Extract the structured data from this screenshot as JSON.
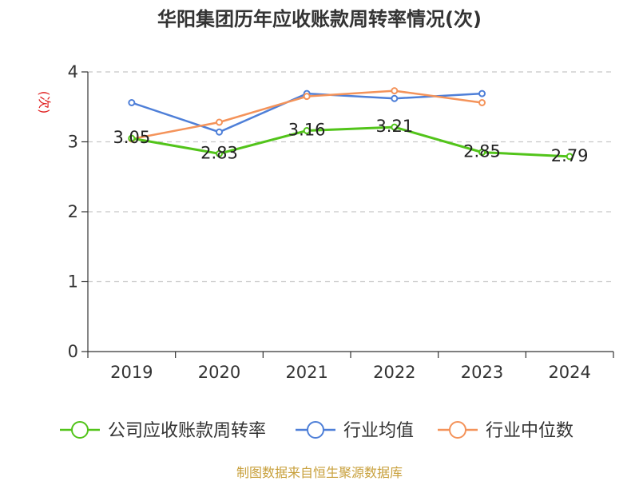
{
  "title": "华阳集团历年应收账款周转率情况(次)",
  "source": "制图数据来自恒生聚源数据库",
  "chart_data": {
    "type": "line",
    "categories": [
      "2019",
      "2020",
      "2021",
      "2022",
      "2023",
      "2024"
    ],
    "ylabel": "(次)",
    "ylim": [
      0,
      4
    ],
    "yticks": [
      0,
      1,
      2,
      3,
      4
    ],
    "grid": true,
    "legend_position": "bottom",
    "series": [
      {
        "name": "公司应收账款周转率",
        "color": "#52c41a",
        "values": [
          3.05,
          2.83,
          3.16,
          3.21,
          2.85,
          2.79
        ],
        "labels": [
          "3.05",
          "2.83",
          "3.16",
          "3.21",
          "2.85",
          "2.79"
        ]
      },
      {
        "name": "行业均值",
        "color": "#4e7fd8",
        "values": [
          3.56,
          3.14,
          3.69,
          3.62,
          3.69,
          null
        ]
      },
      {
        "name": "行业中位数",
        "color": "#f4935a",
        "values": [
          3.04,
          3.28,
          3.65,
          3.73,
          3.56,
          null
        ]
      }
    ]
  }
}
